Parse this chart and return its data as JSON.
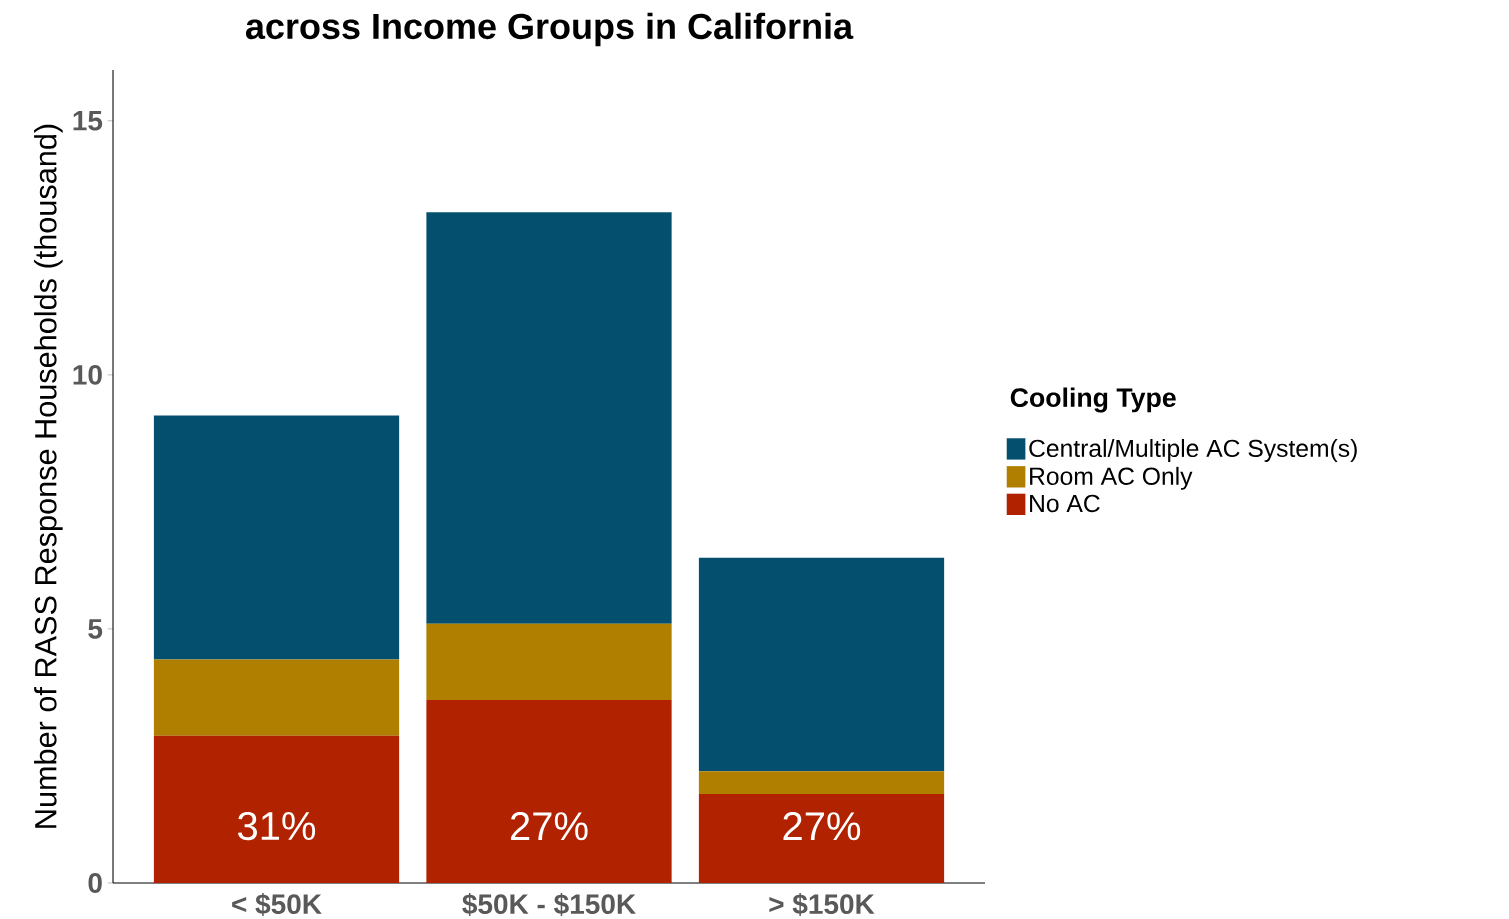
{
  "chart_data": {
    "type": "bar",
    "title": "across Income Groups in California",
    "ylabel": "Number of RASS Response Households (thousand)",
    "legend_title": "Cooling Type",
    "categories": [
      "< $50K",
      "$50K - $150K",
      "> $150K"
    ],
    "stacked": true,
    "series": [
      {
        "name": "No AC",
        "color": "#b02200",
        "values": [
          2.9,
          3.6,
          1.75
        ]
      },
      {
        "name": "Room AC Only",
        "color": "#b07f00",
        "values": [
          1.5,
          1.5,
          0.45
        ]
      },
      {
        "name": "Central/Multiple AC System(s)",
        "color": "#054f6e",
        "values": [
          4.8,
          8.1,
          4.2
        ]
      }
    ],
    "ylim": [
      0,
      16
    ],
    "yticks": [
      0,
      5,
      10,
      15
    ],
    "grid": false,
    "legend": "right",
    "annotations": [
      "31%",
      "27%",
      "27%"
    ]
  }
}
